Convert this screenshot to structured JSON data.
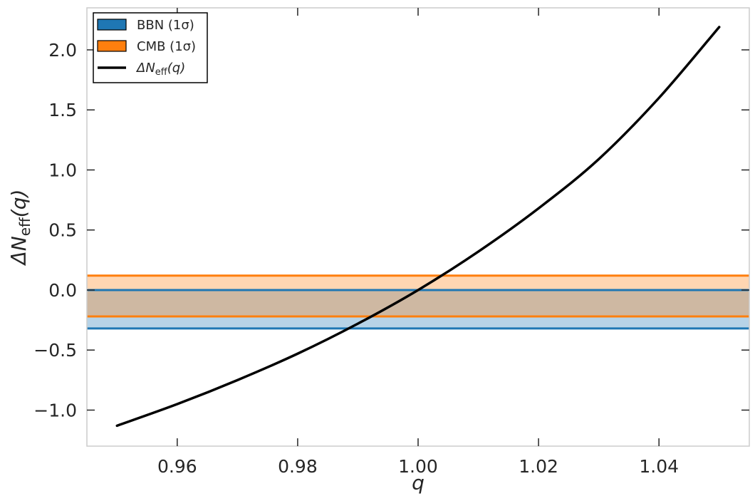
{
  "chart_data": {
    "type": "line",
    "xlabel": "q",
    "ylabel": "ΔNeff(q)",
    "xlim": [
      0.945,
      1.055
    ],
    "ylim": [
      -1.3,
      2.35
    ],
    "xticks": [
      0.96,
      0.98,
      1.0,
      1.02,
      1.04
    ],
    "xtick_labels": [
      "0.96",
      "0.98",
      "1.00",
      "1.02",
      "1.04"
    ],
    "yticks": [
      -1.0,
      -0.5,
      0.0,
      0.5,
      1.0,
      1.5,
      2.0
    ],
    "ytick_labels": [
      "−1.0",
      "−0.5",
      "0.0",
      "0.5",
      "1.0",
      "1.5",
      "2.0"
    ],
    "grid": false,
    "legend_position": "top-left",
    "bands": [
      {
        "name": "BBN (1σ)",
        "y_low": -0.32,
        "y_high": 0.0,
        "edge_color": "#1f77b4",
        "fill_color": "#1f77b4",
        "fill_opacity": 0.32
      },
      {
        "name": "CMB (1σ)",
        "y_low": -0.22,
        "y_high": 0.12,
        "edge_color": "#ff7f0e",
        "fill_color": "#ff7f0e",
        "fill_opacity": 0.32
      }
    ],
    "series": [
      {
        "name": "ΔNeff(q)",
        "color": "#000000",
        "x": [
          0.95,
          0.96,
          0.97,
          0.98,
          0.99,
          1.0,
          1.01,
          1.02,
          1.03,
          1.04,
          1.05
        ],
        "y": [
          -1.13,
          -0.95,
          -0.75,
          -0.53,
          -0.28,
          0.0,
          0.32,
          0.68,
          1.09,
          1.6,
          2.19
        ]
      }
    ]
  },
  "legend": {
    "items": [
      {
        "label": "BBN (1σ)",
        "swatch_color": "#1f77b4",
        "kind": "patch"
      },
      {
        "label": "CMB (1σ)",
        "swatch_color": "#ff7f0e",
        "kind": "patch"
      },
      {
        "label_prefix": "ΔN",
        "label_sub": "eff",
        "label_suffix": "(q)",
        "swatch_color": "#000000",
        "kind": "line"
      }
    ]
  },
  "ylabel_parts": {
    "prefix": "ΔN",
    "sub": "eff",
    "suffix": "(q)"
  }
}
